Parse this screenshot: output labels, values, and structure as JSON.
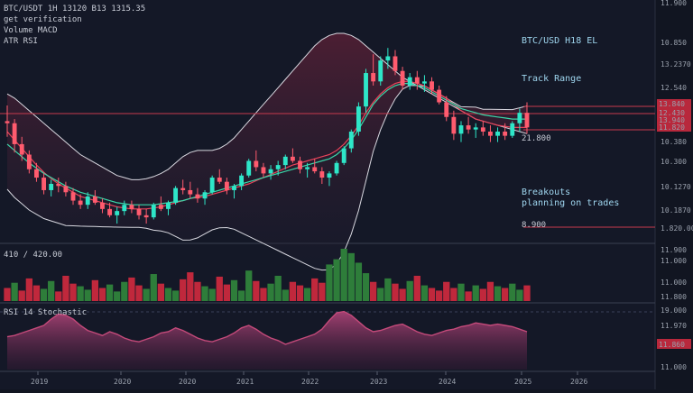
{
  "header": {
    "line1": "BTC/USDT 1H  13120 B13  1315.35",
    "line2": "get verification",
    "line3": "Volume MACD",
    "line4": "ATR RSI"
  },
  "annotations": {
    "top_right": "BTC/USD H18 EL",
    "mid_right": "Track Range",
    "level": "21.800",
    "lower_right_1": "Breakouts",
    "lower_right_2": "planning on trades",
    "lower_level": "8.900"
  },
  "volume_panel": {
    "label": "410 / 420.00"
  },
  "osc_panel": {
    "label": "RSI 14  Stochastic"
  },
  "price_axis": [
    "11.900",
    "10.850",
    "13.2370",
    "12.540",
    "19.870",
    "10.380",
    "10.300",
    "10.1270",
    "10.1870",
    "1.820.00"
  ],
  "price_tags": [
    "13.840",
    "12.430",
    "13.940",
    "11.820"
  ],
  "volume_axis": [
    "11.900",
    "11.000",
    "11.000",
    "11.800"
  ],
  "osc_axis": [
    "19.000",
    "11.970",
    "11.000"
  ],
  "osc_tag": "11.860",
  "x_axis": [
    "2019",
    "2020",
    "2020",
    "2021",
    "2022",
    "2023",
    "2024",
    "2025",
    "2026"
  ],
  "colors": {
    "up": "#2ee6c8",
    "down": "#ff5b6e",
    "vol_up": "#2e7d3a",
    "vol_down": "#c0283c",
    "osc": "#c44a7a"
  },
  "chart_data": {
    "type": "candlestick",
    "series": [
      {
        "name": "price",
        "candles": [
          [
            150,
            165,
            135,
            148
          ],
          [
            148,
            152,
            120,
            128
          ],
          [
            128,
            135,
            112,
            118
          ],
          [
            118,
            122,
            100,
            104
          ],
          [
            104,
            110,
            92,
            96
          ],
          [
            96,
            100,
            80,
            84
          ],
          [
            84,
            94,
            78,
            90
          ],
          [
            90,
            96,
            82,
            88
          ],
          [
            88,
            92,
            78,
            82
          ],
          [
            82,
            86,
            70,
            74
          ],
          [
            74,
            80,
            66,
            70
          ],
          [
            70,
            82,
            66,
            78
          ],
          [
            78,
            84,
            70,
            72
          ],
          [
            72,
            76,
            62,
            66
          ],
          [
            66,
            72,
            58,
            60
          ],
          [
            60,
            68,
            52,
            64
          ],
          [
            64,
            74,
            60,
            70
          ],
          [
            70,
            74,
            62,
            66
          ],
          [
            66,
            70,
            56,
            60
          ],
          [
            60,
            66,
            52,
            58
          ],
          [
            58,
            72,
            56,
            70
          ],
          [
            70,
            78,
            64,
            66
          ],
          [
            66,
            74,
            60,
            72
          ],
          [
            72,
            88,
            70,
            86
          ],
          [
            86,
            94,
            80,
            84
          ],
          [
            84,
            92,
            76,
            80
          ],
          [
            80,
            86,
            72,
            76
          ],
          [
            76,
            84,
            70,
            82
          ],
          [
            82,
            98,
            80,
            96
          ],
          [
            96,
            104,
            90,
            92
          ],
          [
            92,
            96,
            80,
            84
          ],
          [
            84,
            90,
            76,
            88
          ],
          [
            88,
            100,
            84,
            98
          ],
          [
            98,
            114,
            96,
            112
          ],
          [
            112,
            122,
            102,
            106
          ],
          [
            106,
            110,
            96,
            100
          ],
          [
            100,
            108,
            94,
            104
          ],
          [
            104,
            112,
            98,
            108
          ],
          [
            108,
            118,
            104,
            116
          ],
          [
            116,
            124,
            110,
            112
          ],
          [
            112,
            116,
            100,
            104
          ],
          [
            104,
            110,
            96,
            106
          ],
          [
            106,
            114,
            100,
            102
          ],
          [
            102,
            106,
            90,
            96
          ],
          [
            96,
            102,
            88,
            100
          ],
          [
            100,
            112,
            98,
            110
          ],
          [
            110,
            126,
            108,
            124
          ],
          [
            124,
            142,
            120,
            140
          ],
          [
            140,
            168,
            136,
            164
          ],
          [
            164,
            200,
            158,
            196
          ],
          [
            196,
            214,
            184,
            188
          ],
          [
            188,
            212,
            184,
            208
          ],
          [
            208,
            220,
            200,
            212
          ],
          [
            212,
            218,
            194,
            198
          ],
          [
            198,
            202,
            180,
            184
          ],
          [
            184,
            196,
            180,
            192
          ],
          [
            192,
            198,
            180,
            186
          ],
          [
            186,
            194,
            178,
            188
          ],
          [
            188,
            192,
            176,
            180
          ],
          [
            180,
            184,
            166,
            168
          ],
          [
            168,
            174,
            150,
            154
          ],
          [
            154,
            160,
            132,
            138
          ],
          [
            138,
            150,
            130,
            146
          ],
          [
            146,
            154,
            138,
            142
          ],
          [
            142,
            148,
            134,
            144
          ],
          [
            144,
            150,
            136,
            140
          ],
          [
            140,
            146,
            130,
            136
          ],
          [
            136,
            144,
            130,
            140
          ],
          [
            140,
            148,
            132,
            136
          ],
          [
            136,
            150,
            134,
            148
          ],
          [
            148,
            162,
            140,
            158
          ],
          [
            158,
            168,
            138,
            144
          ]
        ]
      }
    ],
    "ylim": [
      40,
      240
    ],
    "volume": [
      30,
      42,
      24,
      52,
      36,
      28,
      46,
      22,
      58,
      40,
      34,
      26,
      48,
      30,
      38,
      22,
      44,
      54,
      36,
      28,
      62,
      40,
      30,
      24,
      50,
      66,
      44,
      34,
      28,
      56,
      38,
      48,
      24,
      70,
      46,
      30,
      40,
      58,
      26,
      44,
      36,
      30,
      52,
      42,
      84,
      96,
      120,
      110,
      88,
      64,
      44,
      30,
      52,
      40,
      28,
      46,
      58,
      36,
      30,
      24,
      44,
      30,
      40,
      22,
      36,
      28,
      44,
      34,
      30,
      40,
      26,
      36
    ],
    "volume_up": [
      0,
      1,
      0,
      0,
      0,
      1,
      1,
      0,
      0,
      0,
      1,
      1,
      0,
      0,
      1,
      1,
      1,
      0,
      0,
      1,
      1,
      0,
      1,
      1,
      0,
      0,
      0,
      1,
      1,
      0,
      0,
      1,
      1,
      1,
      0,
      0,
      1,
      1,
      1,
      0,
      0,
      1,
      0,
      0,
      1,
      1,
      1,
      1,
      1,
      1,
      0,
      1,
      1,
      0,
      0,
      1,
      0,
      1,
      0,
      0,
      0,
      0,
      1,
      0,
      1,
      0,
      0,
      1,
      0,
      1,
      1,
      0
    ],
    "oscillator": [
      52,
      54,
      58,
      62,
      66,
      70,
      80,
      88,
      86,
      80,
      70,
      62,
      58,
      54,
      60,
      56,
      50,
      46,
      44,
      48,
      52,
      58,
      60,
      66,
      62,
      56,
      50,
      46,
      44,
      48,
      52,
      58,
      66,
      70,
      64,
      56,
      50,
      46,
      40,
      44,
      48,
      52,
      56,
      64,
      78,
      90,
      92,
      86,
      76,
      66,
      60,
      62,
      66,
      70,
      72,
      66,
      60,
      56,
      54,
      58,
      62,
      64,
      68,
      70,
      74,
      72,
      70,
      72,
      70,
      68,
      64,
      60
    ],
    "ma": [
      {
        "name": "ma1",
        "values": [
          140,
          132,
          124,
          116,
          108,
          101,
          95,
          90,
          86,
          82,
          78,
          76,
          74,
          72,
          70,
          68,
          67,
          66,
          66,
          66,
          67,
          68,
          70,
          72,
          74,
          76,
          77,
          78,
          80,
          82,
          84,
          86,
          88,
          90,
          93,
          96,
          99,
          102,
          105,
          108,
          110,
          112,
          114,
          116,
          118,
          122,
          128,
          136,
          146,
          158,
          168,
          176,
          182,
          186,
          188,
          188,
          186,
          184,
          180,
          176,
          172,
          166,
          160,
          156,
          152,
          150,
          148,
          146,
          145,
          144,
          144,
          144
        ]
      },
      {
        "name": "ma2",
        "values": [
          128,
          122,
          116,
          110,
          105,
          100,
          96,
          92,
          88,
          85,
          82,
          80,
          78,
          76,
          74,
          72,
          71,
          70,
          70,
          70,
          70,
          71,
          72,
          73,
          74,
          76,
          78,
          80,
          82,
          84,
          86,
          88,
          90,
          92,
          94,
          96,
          98,
          100,
          102,
          104,
          106,
          108,
          110,
          112,
          114,
          118,
          124,
          132,
          142,
          154,
          166,
          174,
          180,
          184,
          186,
          186,
          184,
          182,
          178,
          174,
          170,
          166,
          162,
          160,
          158,
          156,
          155,
          154,
          153,
          152,
          152,
          152
        ]
      }
    ],
    "band_upper": [
      176,
      172,
      166,
      160,
      154,
      148,
      142,
      136,
      130,
      124,
      118,
      114,
      110,
      106,
      102,
      98,
      96,
      94,
      94,
      95,
      97,
      100,
      104,
      110,
      116,
      120,
      122,
      122,
      122,
      124,
      128,
      134,
      142,
      150,
      158,
      166,
      174,
      182,
      190,
      198,
      206,
      214,
      222,
      228,
      232,
      234,
      234,
      232,
      228,
      222,
      216,
      210,
      204,
      198,
      192,
      188,
      184,
      180,
      176,
      172,
      168,
      164,
      160,
      156,
      152,
      150,
      148,
      146,
      144,
      142,
      140,
      138
    ]
  }
}
